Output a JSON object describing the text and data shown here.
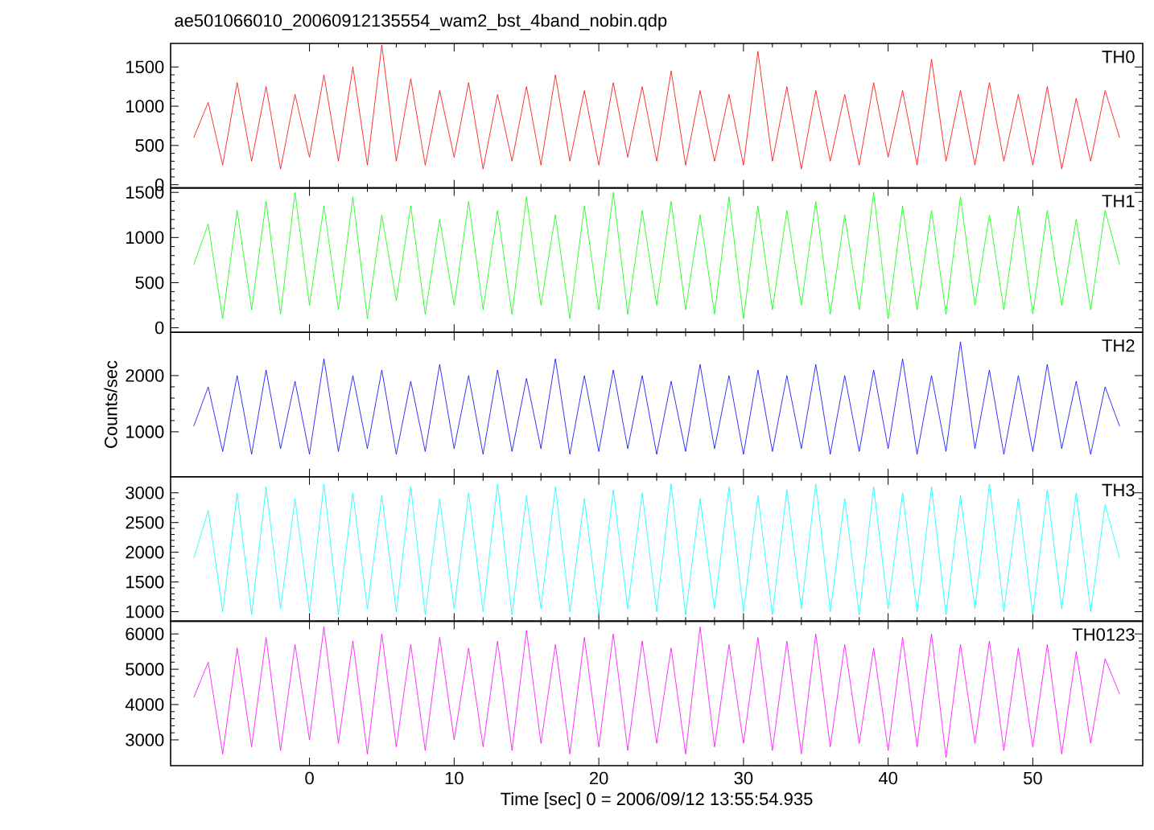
{
  "chart_data": [
    {
      "type": "line",
      "title": "ae501066010_20060912135554_wam2_bst_4band_nobin.qdp",
      "x": [
        -8,
        -7,
        -6,
        -5,
        -4,
        -3,
        -2,
        -1,
        0,
        1,
        2,
        3,
        4,
        5,
        6,
        7,
        8,
        9,
        10,
        11,
        12,
        13,
        14,
        15,
        16,
        17,
        18,
        19,
        20,
        21,
        22,
        23,
        24,
        25,
        26,
        27,
        28,
        29,
        30,
        31,
        32,
        33,
        34,
        35,
        36,
        37,
        38,
        39,
        40,
        41,
        42,
        43,
        44,
        45,
        46,
        47,
        48,
        49,
        50,
        51,
        52,
        53,
        54,
        55,
        56
      ],
      "xlim": [
        -9.6,
        57.6
      ],
      "xticks": [
        0,
        10,
        20,
        30,
        40,
        50
      ],
      "ylim": [
        -40,
        1800
      ],
      "yticks": [
        0,
        500,
        1000,
        1500
      ],
      "tick_labels": "y",
      "series": [
        {
          "name": "TH0",
          "color": "#ff0000",
          "values": [
            600,
            1050,
            250,
            1300,
            300,
            1250,
            200,
            1150,
            350,
            1400,
            300,
            1500,
            250,
            1780,
            300,
            1350,
            250,
            1200,
            350,
            1300,
            200,
            1150,
            300,
            1250,
            250,
            1400,
            300,
            1200,
            250,
            1300,
            350,
            1250,
            300,
            1450,
            250,
            1200,
            300,
            1150,
            250,
            1700,
            300,
            1250,
            200,
            1200,
            300,
            1150,
            250,
            1300,
            350,
            1200,
            250,
            1600,
            300,
            1200,
            250,
            1300,
            300,
            1150,
            250,
            1250,
            200,
            1100,
            300,
            1200,
            600
          ]
        }
      ]
    },
    {
      "type": "line",
      "x": [
        -8,
        -7,
        -6,
        -5,
        -4,
        -3,
        -2,
        -1,
        0,
        1,
        2,
        3,
        4,
        5,
        6,
        7,
        8,
        9,
        10,
        11,
        12,
        13,
        14,
        15,
        16,
        17,
        18,
        19,
        20,
        21,
        22,
        23,
        24,
        25,
        26,
        27,
        28,
        29,
        30,
        31,
        32,
        33,
        34,
        35,
        36,
        37,
        38,
        39,
        40,
        41,
        42,
        43,
        44,
        45,
        46,
        47,
        48,
        49,
        50,
        51,
        52,
        53,
        54,
        55,
        56
      ],
      "xlim": [
        -9.6,
        57.6
      ],
      "xticks": [
        0,
        10,
        20,
        30,
        40,
        50
      ],
      "ylim": [
        -50,
        1550
      ],
      "yticks": [
        0,
        500,
        1000,
        1500
      ],
      "tick_labels": "y",
      "series": [
        {
          "name": "TH1",
          "color": "#00ff00",
          "values": [
            700,
            1150,
            100,
            1300,
            200,
            1400,
            150,
            1500,
            250,
            1350,
            200,
            1450,
            100,
            1250,
            300,
            1350,
            150,
            1200,
            250,
            1400,
            200,
            1300,
            150,
            1450,
            250,
            1250,
            100,
            1350,
            200,
            1500,
            150,
            1300,
            250,
            1400,
            200,
            1250,
            150,
            1450,
            100,
            1350,
            200,
            1300,
            250,
            1400,
            150,
            1250,
            200,
            1500,
            100,
            1350,
            200,
            1300,
            150,
            1450,
            250,
            1250,
            200,
            1350,
            150,
            1300,
            250,
            1200,
            200,
            1300,
            700
          ]
        }
      ]
    },
    {
      "type": "line",
      "ylabel": "Counts/sec",
      "x": [
        -8,
        -7,
        -6,
        -5,
        -4,
        -3,
        -2,
        -1,
        0,
        1,
        2,
        3,
        4,
        5,
        6,
        7,
        8,
        9,
        10,
        11,
        12,
        13,
        14,
        15,
        16,
        17,
        18,
        19,
        20,
        21,
        22,
        23,
        24,
        25,
        26,
        27,
        28,
        29,
        30,
        31,
        32,
        33,
        34,
        35,
        36,
        37,
        38,
        39,
        40,
        41,
        42,
        43,
        44,
        45,
        46,
        47,
        48,
        49,
        50,
        51,
        52,
        53,
        54,
        55,
        56
      ],
      "xlim": [
        -9.6,
        57.6
      ],
      "xticks": [
        0,
        10,
        20,
        30,
        40,
        50
      ],
      "ylim": [
        200,
        2770
      ],
      "yticks": [
        1000,
        2000
      ],
      "tick_labels": "y",
      "series": [
        {
          "name": "TH2",
          "color": "#0000ff",
          "values": [
            1100,
            1800,
            650,
            2000,
            600,
            2100,
            700,
            1900,
            600,
            2300,
            650,
            2000,
            700,
            2100,
            600,
            1900,
            650,
            2200,
            700,
            2000,
            600,
            2100,
            650,
            1950,
            700,
            2300,
            600,
            2000,
            650,
            2100,
            700,
            2000,
            600,
            1900,
            650,
            2200,
            700,
            2000,
            600,
            2100,
            650,
            2000,
            700,
            2200,
            600,
            2000,
            650,
            2100,
            700,
            2300,
            600,
            2000,
            650,
            2600,
            700,
            2100,
            600,
            2000,
            650,
            2200,
            700,
            1900,
            600,
            1800,
            1100
          ]
        }
      ]
    },
    {
      "type": "line",
      "x": [
        -8,
        -7,
        -6,
        -5,
        -4,
        -3,
        -2,
        -1,
        0,
        1,
        2,
        3,
        4,
        5,
        6,
        7,
        8,
        9,
        10,
        11,
        12,
        13,
        14,
        15,
        16,
        17,
        18,
        19,
        20,
        21,
        22,
        23,
        24,
        25,
        26,
        27,
        28,
        29,
        30,
        31,
        32,
        33,
        34,
        35,
        36,
        37,
        38,
        39,
        40,
        41,
        42,
        43,
        44,
        45,
        46,
        47,
        48,
        49,
        50,
        51,
        52,
        53,
        54,
        55,
        56
      ],
      "xlim": [
        -9.6,
        57.6
      ],
      "xticks": [
        0,
        10,
        20,
        30,
        40,
        50
      ],
      "ylim": [
        840,
        3270
      ],
      "yticks": [
        1000,
        1500,
        2000,
        2500,
        3000
      ],
      "tick_labels": "y",
      "series": [
        {
          "name": "TH3",
          "color": "#00ffff",
          "values": [
            1900,
            2700,
            1000,
            3000,
            950,
            3100,
            1050,
            2900,
            1000,
            3150,
            950,
            3000,
            1050,
            2950,
            1000,
            3100,
            950,
            2900,
            1050,
            3000,
            1000,
            3150,
            950,
            2950,
            1050,
            3100,
            1000,
            2900,
            950,
            3050,
            1050,
            3000,
            1000,
            3150,
            950,
            2900,
            1050,
            3100,
            1000,
            2950,
            950,
            3050,
            1050,
            3150,
            1000,
            2900,
            950,
            3100,
            1050,
            3000,
            1000,
            3100,
            950,
            2950,
            1050,
            3150,
            1000,
            2900,
            950,
            3050,
            1050,
            3000,
            1000,
            2800,
            1900
          ]
        }
      ]
    },
    {
      "type": "line",
      "xlabel": "Time [sec] 0 = 2006/09/12 13:55:54.935",
      "x": [
        -8,
        -7,
        -6,
        -5,
        -4,
        -3,
        -2,
        -1,
        0,
        1,
        2,
        3,
        4,
        5,
        6,
        7,
        8,
        9,
        10,
        11,
        12,
        13,
        14,
        15,
        16,
        17,
        18,
        19,
        20,
        21,
        22,
        23,
        24,
        25,
        26,
        27,
        28,
        29,
        30,
        31,
        32,
        33,
        34,
        35,
        36,
        37,
        38,
        39,
        40,
        41,
        42,
        43,
        44,
        45,
        46,
        47,
        48,
        49,
        50,
        51,
        52,
        53,
        54,
        55,
        56
      ],
      "xlim": [
        -9.6,
        57.6
      ],
      "xticks": [
        0,
        10,
        20,
        30,
        40,
        50
      ],
      "ylim": [
        2270,
        6360
      ],
      "yticks": [
        3000,
        4000,
        5000,
        6000
      ],
      "series": [
        {
          "name": "TH0123",
          "color": "#ff00ff",
          "values": [
            4200,
            5200,
            2600,
            5600,
            2800,
            5900,
            2700,
            5700,
            3000,
            6200,
            2900,
            5800,
            2600,
            6000,
            2800,
            5700,
            2700,
            5900,
            3000,
            5600,
            2800,
            5800,
            2700,
            6100,
            2900,
            5700,
            2600,
            5900,
            2800,
            6000,
            2700,
            5800,
            2900,
            5600,
            2600,
            6200,
            2800,
            5700,
            2900,
            5900,
            2700,
            5800,
            2600,
            6000,
            2800,
            5700,
            2900,
            5600,
            2700,
            5900,
            2800,
            6000,
            2500,
            5700,
            2900,
            5800,
            2700,
            5600,
            2800,
            5700,
            2600,
            5500,
            2900,
            5300,
            4300
          ]
        }
      ]
    }
  ]
}
